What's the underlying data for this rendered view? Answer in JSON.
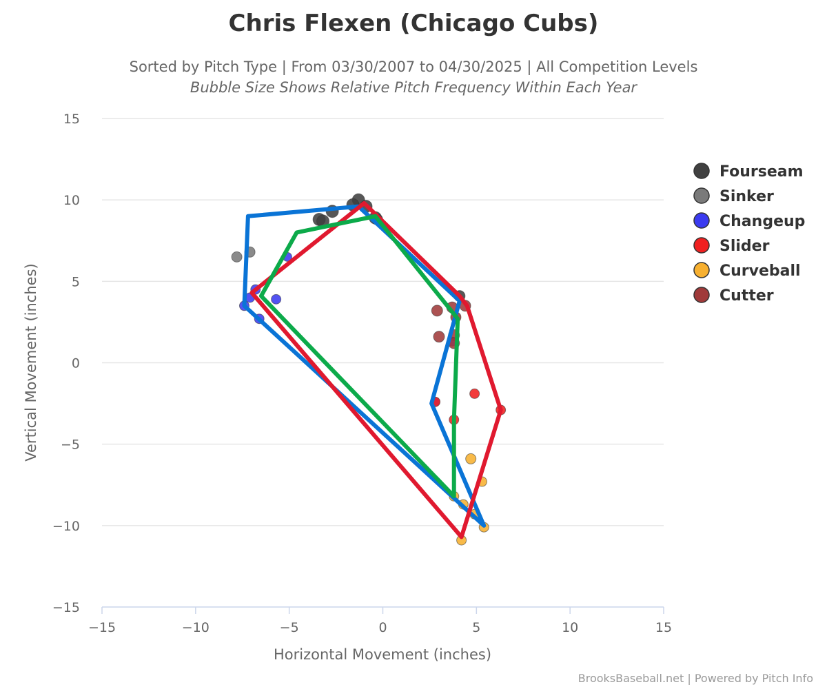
{
  "title": "Chris Flexen (Chicago Cubs)",
  "subtitle_line1": "Sorted by Pitch Type | From 03/30/2007 to 04/30/2025 | All Competition Levels",
  "subtitle_line2": "Bubble Size Shows Relative Pitch Frequency Within Each Year",
  "credits": "BrooksBaseball.net | Powered by Pitch Info",
  "chart_data": {
    "type": "scatter",
    "xlabel": "Horizontal Movement (inches)",
    "ylabel": "Vertical Movement (inches)",
    "xlim": [
      -15,
      15
    ],
    "ylim": [
      -15,
      15
    ],
    "xticks": [
      -15,
      -10,
      -5,
      0,
      5,
      10,
      15
    ],
    "yticks": [
      -15,
      -10,
      -5,
      0,
      5,
      10,
      15
    ],
    "grid": true,
    "legend_position": "right",
    "series": [
      {
        "name": "Fourseam",
        "color": "#404040",
        "points": [
          {
            "x": -1.3,
            "y": 10.0,
            "s": 1.0
          },
          {
            "x": -1.6,
            "y": 9.7,
            "s": 1.0
          },
          {
            "x": -0.9,
            "y": 9.6,
            "s": 1.0
          },
          {
            "x": -2.7,
            "y": 9.3,
            "s": 1.0
          },
          {
            "x": -3.4,
            "y": 8.8,
            "s": 1.0
          },
          {
            "x": -3.2,
            "y": 8.7,
            "s": 1.0
          },
          {
            "x": -0.4,
            "y": 8.9,
            "s": 1.0
          },
          {
            "x": -0.3,
            "y": 8.8,
            "s": 0.8
          },
          {
            "x": 4.1,
            "y": 4.1,
            "s": 0.8
          }
        ]
      },
      {
        "name": "Sinker",
        "color": "#7a7a7a",
        "points": [
          {
            "x": -7.1,
            "y": 6.8,
            "s": 0.7
          },
          {
            "x": -7.8,
            "y": 6.5,
            "s": 0.7
          }
        ]
      },
      {
        "name": "Changeup",
        "color": "#3b3bf0",
        "points": [
          {
            "x": -5.1,
            "y": 6.5,
            "s": 0.5
          },
          {
            "x": -6.8,
            "y": 4.5,
            "s": 0.6
          },
          {
            "x": -7.1,
            "y": 4.0,
            "s": 0.6
          },
          {
            "x": -5.7,
            "y": 3.9,
            "s": 0.6
          },
          {
            "x": -7.4,
            "y": 3.5,
            "s": 0.6
          },
          {
            "x": -6.6,
            "y": 2.7,
            "s": 0.6
          },
          {
            "x": 2.8,
            "y": -2.4,
            "s": 0.5
          },
          {
            "x": 3.7,
            "y": 1.3,
            "s": 0.5
          }
        ]
      },
      {
        "name": "Slider",
        "color": "#f02020",
        "points": [
          {
            "x": 4.9,
            "y": -1.9,
            "s": 0.6
          },
          {
            "x": 2.8,
            "y": -2.4,
            "s": 0.6
          },
          {
            "x": 6.3,
            "y": -2.9,
            "s": 0.6
          },
          {
            "x": 3.8,
            "y": -3.5,
            "s": 0.6
          }
        ]
      },
      {
        "name": "Curveball",
        "color": "#f7b030",
        "points": [
          {
            "x": 4.7,
            "y": -5.9,
            "s": 0.7
          },
          {
            "x": 5.3,
            "y": -7.3,
            "s": 0.6
          },
          {
            "x": 3.8,
            "y": -8.2,
            "s": 0.6
          },
          {
            "x": 4.3,
            "y": -8.7,
            "s": 0.6
          },
          {
            "x": 4.9,
            "y": -9.3,
            "s": 0.6
          },
          {
            "x": 5.4,
            "y": -10.1,
            "s": 0.6
          },
          {
            "x": 4.2,
            "y": -10.9,
            "s": 0.6
          }
        ]
      },
      {
        "name": "Cutter",
        "color": "#a03a3a",
        "points": [
          {
            "x": 2.9,
            "y": 3.2,
            "s": 0.8
          },
          {
            "x": 3.7,
            "y": 3.4,
            "s": 0.8
          },
          {
            "x": 4.4,
            "y": 3.5,
            "s": 0.8
          },
          {
            "x": 3.9,
            "y": 2.8,
            "s": 0.7
          },
          {
            "x": 3.0,
            "y": 1.6,
            "s": 0.8
          },
          {
            "x": 3.8,
            "y": 1.7,
            "s": 0.8
          },
          {
            "x": 3.8,
            "y": 1.2,
            "s": 0.8
          }
        ]
      }
    ],
    "outlines": [
      {
        "color": "#0a74d6",
        "points": [
          [
            -1.3,
            9.6
          ],
          [
            -7.2,
            9.0
          ],
          [
            -7.4,
            3.5
          ],
          [
            5.4,
            -10.0
          ],
          [
            2.6,
            -2.5
          ],
          [
            4.1,
            3.8
          ]
        ]
      },
      {
        "color": "#e0192f",
        "points": [
          [
            -1.0,
            9.8
          ],
          [
            4.1,
            4.1
          ],
          [
            4.5,
            3.5
          ],
          [
            6.3,
            -2.9
          ],
          [
            4.2,
            -10.7
          ],
          [
            -7.0,
            4.3
          ]
        ]
      },
      {
        "color": "#0caa4a",
        "points": [
          [
            -4.6,
            8.0
          ],
          [
            -0.4,
            9.0
          ],
          [
            4.0,
            2.7
          ],
          [
            3.8,
            -3.5
          ],
          [
            3.8,
            -8.2
          ],
          [
            -6.5,
            4.1
          ]
        ]
      }
    ]
  }
}
